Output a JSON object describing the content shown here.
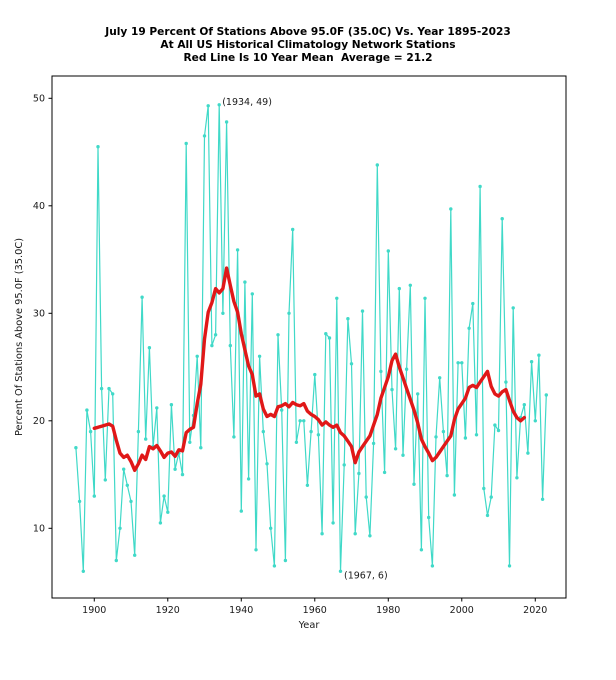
{
  "title": {
    "line1": "July 19 Percent Of Stations Above 95.0F (35.0C) Vs. Year 1895-2023",
    "line2": "At All US Historical Climatology Network Stations",
    "line3": "Red Line Is 10 Year Mean  Average = 21.2"
  },
  "colors": {
    "series_line": "#40d9c8",
    "mean_line": "#e01818",
    "axis": "#000000",
    "text": "#1a1a1a",
    "background": "#ffffff"
  },
  "chart_data": {
    "type": "line",
    "title": "July 19 Percent Of Stations Above 95.0F (35.0C) Vs. Year 1895-2023",
    "subtitle1": "At All US Historical Climatology Network Stations",
    "subtitle2": "Red Line Is 10 Year Mean  Average = 21.2",
    "xlabel": "Year",
    "ylabel": "Percent Of Stations Above 95.0F (35.0C)",
    "average": 21.2,
    "x_ticks": [
      1900,
      1920,
      1940,
      1960,
      1980,
      2000,
      2020
    ],
    "y_ticks": [
      10,
      20,
      30,
      40,
      50
    ],
    "xlim": [
      1888.6,
      2028.4
    ],
    "ylim": [
      3.5,
      52.1
    ],
    "grid": false,
    "legend": "none",
    "annotations": [
      {
        "text": "(1934, 49)",
        "target_x": 1934,
        "target_y": 49,
        "position": "above-right"
      },
      {
        "text": "(1967, 6)",
        "target_x": 1967,
        "target_y": 6,
        "position": "below-right"
      }
    ],
    "series": [
      {
        "name": "Percent of stations above 95.0F",
        "style": "line+markers",
        "color": "#40d9c8",
        "x_start": 1895,
        "x": [
          1895,
          1896,
          1897,
          1898,
          1899,
          1900,
          1901,
          1902,
          1903,
          1904,
          1905,
          1906,
          1907,
          1908,
          1909,
          1910,
          1911,
          1912,
          1913,
          1914,
          1915,
          1916,
          1917,
          1918,
          1919,
          1920,
          1921,
          1922,
          1923,
          1924,
          1925,
          1926,
          1927,
          1928,
          1929,
          1930,
          1931,
          1932,
          1933,
          1934,
          1935,
          1936,
          1937,
          1938,
          1939,
          1940,
          1941,
          1942,
          1943,
          1944,
          1945,
          1946,
          1947,
          1948,
          1949,
          1950,
          1951,
          1952,
          1953,
          1954,
          1955,
          1956,
          1957,
          1958,
          1959,
          1960,
          1961,
          1962,
          1963,
          1964,
          1965,
          1966,
          1967,
          1968,
          1969,
          1970,
          1971,
          1972,
          1973,
          1974,
          1975,
          1976,
          1977,
          1978,
          1979,
          1980,
          1981,
          1982,
          1983,
          1984,
          1985,
          1986,
          1987,
          1988,
          1989,
          1990,
          1991,
          1992,
          1993,
          1994,
          1995,
          1996,
          1997,
          1998,
          1999,
          2000,
          2001,
          2002,
          2003,
          2004,
          2005,
          2006,
          2007,
          2008,
          2009,
          2010,
          2011,
          2012,
          2013,
          2014,
          2015,
          2016,
          2017,
          2018,
          2019,
          2020,
          2021,
          2022,
          2023
        ],
        "values": [
          17.5,
          12.5,
          6,
          21,
          19,
          13,
          45.5,
          23,
          14.5,
          23,
          22.5,
          7,
          10,
          15.5,
          14,
          12.5,
          7.5,
          19,
          31.5,
          18.3,
          26.8,
          17.6,
          21.2,
          10.5,
          13,
          11.5,
          21.5,
          15.5,
          17,
          15,
          45.8,
          18,
          20.5,
          26,
          17.5,
          46.5,
          49.3,
          27,
          28,
          49.4,
          30,
          47.8,
          27,
          18.5,
          35.9,
          11.6,
          32.9,
          14.6,
          31.8,
          8,
          26,
          19,
          16,
          10,
          6.5,
          28,
          21,
          7,
          30,
          37.8,
          18,
          20,
          20,
          14,
          19,
          24.3,
          18.7,
          9.5,
          28.1,
          27.7,
          10.5,
          31.4,
          6,
          15.9,
          29.5,
          25.3,
          9.5,
          15.1,
          30.2,
          12.9,
          9.3,
          17.9,
          43.8,
          24.6,
          15.2,
          35.8,
          22.9,
          17.4,
          32.3,
          16.8,
          24.8,
          32.6,
          14.1,
          22.5,
          8,
          31.4,
          11,
          6.5,
          18.5,
          24,
          19,
          14.9,
          39.7,
          13.1,
          25.4,
          25.4,
          18.4,
          28.6,
          30.9,
          18.7,
          41.8,
          13.7,
          11.2,
          12.9,
          19.6,
          19.1,
          38.8,
          23.6,
          6.5,
          30.5,
          14.7,
          20.3,
          21.5,
          17,
          25.5,
          20,
          26.1,
          12.7,
          22.4
        ]
      },
      {
        "name": "10 Year Mean",
        "style": "line",
        "color": "#e01818",
        "x_start": 1900,
        "x": [
          1900,
          1901,
          1902,
          1903,
          1904,
          1905,
          1906,
          1907,
          1908,
          1909,
          1910,
          1911,
          1912,
          1913,
          1914,
          1915,
          1916,
          1917,
          1918,
          1919,
          1920,
          1921,
          1922,
          1923,
          1924,
          1925,
          1926,
          1927,
          1928,
          1929,
          1930,
          1931,
          1932,
          1933,
          1934,
          1935,
          1936,
          1937,
          1938,
          1939,
          1940,
          1941,
          1942,
          1943,
          1944,
          1945,
          1946,
          1947,
          1948,
          1949,
          1950,
          1951,
          1952,
          1953,
          1954,
          1955,
          1956,
          1957,
          1958,
          1959,
          1960,
          1961,
          1962,
          1963,
          1964,
          1965,
          1966,
          1967,
          1968,
          1969,
          1970,
          1971,
          1972,
          1973,
          1974,
          1975,
          1976,
          1977,
          1978,
          1979,
          1980,
          1981,
          1982,
          1983,
          1984,
          1985,
          1986,
          1987,
          1988,
          1989,
          1990,
          1991,
          1992,
          1993,
          1994,
          1995,
          1996,
          1997,
          1998,
          1999,
          2000,
          2001,
          2002,
          2003,
          2004,
          2005,
          2006,
          2007,
          2008,
          2009,
          2010,
          2011,
          2012,
          2013,
          2014,
          2015,
          2016,
          2017
        ],
        "values": [
          19.3,
          19.4,
          19.5,
          19.6,
          19.7,
          19.5,
          18.2,
          17.0,
          16.6,
          16.8,
          16.2,
          15.4,
          16.0,
          16.8,
          16.4,
          17.6,
          17.4,
          17.7,
          17.2,
          16.6,
          17.0,
          17.1,
          16.7,
          17.3,
          17.2,
          18.9,
          19.2,
          19.4,
          21.6,
          23.4,
          27.6,
          30.1,
          31.0,
          32.3,
          31.9,
          32.3,
          34.2,
          32.6,
          31.1,
          30.1,
          28.1,
          26.6,
          25.1,
          24.3,
          22.3,
          22.5,
          21.1,
          20.4,
          20.6,
          20.4,
          21.3,
          21.4,
          21.6,
          21.3,
          21.7,
          21.5,
          21.4,
          21.6,
          20.9,
          20.6,
          20.4,
          20.1,
          19.6,
          19.9,
          19.6,
          19.4,
          19.6,
          18.9,
          18.6,
          18.1,
          17.6,
          16.1,
          17.1,
          17.6,
          18.1,
          18.6,
          19.6,
          20.6,
          22.1,
          23.1,
          24.1,
          25.6,
          26.2,
          25.0,
          24.0,
          23.0,
          22.0,
          21.0,
          19.8,
          18.3,
          17.6,
          17.0,
          16.3,
          16.6,
          17.1,
          17.6,
          18.1,
          18.6,
          20.1,
          21.1,
          21.6,
          22.1,
          23.1,
          23.3,
          23.1,
          23.6,
          24.1,
          24.6,
          23.2,
          22.5,
          22.3,
          22.7,
          22.9,
          21.9,
          20.9,
          20.3,
          20.0,
          20.3
        ]
      }
    ]
  }
}
